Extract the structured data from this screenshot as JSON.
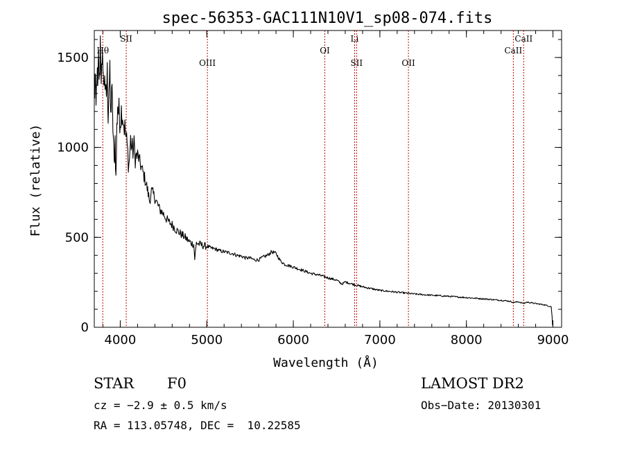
{
  "chart_data": {
    "type": "line",
    "title": "spec-56353-GAC111N10V1_sp08-074.fits",
    "xlabel": "Wavelength (Å)",
    "ylabel": "Flux (relative)",
    "xlim": [
      3700,
      9100
    ],
    "ylim": [
      0,
      1650
    ],
    "x_ticks": [
      4000,
      5000,
      6000,
      7000,
      8000,
      9000
    ],
    "y_ticks": [
      0,
      500,
      1000,
      1500
    ],
    "grid": false,
    "series": [
      {
        "x": [
          3700,
          3710,
          3720,
          3730,
          3740,
          3750,
          3760,
          3770,
          3780,
          3790,
          3800,
          3810,
          3820,
          3830,
          3840,
          3850,
          3860,
          3870,
          3880,
          3890,
          3900,
          3910,
          3920,
          3930,
          3940,
          3950,
          3960,
          3970,
          3980,
          3990,
          4000,
          4020,
          4040,
          4060,
          4080,
          4100,
          4120,
          4140,
          4160,
          4180,
          4200,
          4250,
          4300,
          4340,
          4360,
          4400,
          4450,
          4500,
          4550,
          4600,
          4650,
          4700,
          4750,
          4800,
          4850,
          4861,
          4880,
          4900,
          4950,
          5000,
          5050,
          5100,
          5150,
          5200,
          5250,
          5300,
          5350,
          5400,
          5450,
          5500,
          5550,
          5600,
          5650,
          5700,
          5750,
          5800,
          5850,
          5900,
          6000,
          6100,
          6200,
          6300,
          6400,
          6500,
          6563,
          6600,
          6700,
          6800,
          6900,
          7000,
          7200,
          7400,
          7600,
          7800,
          8000,
          8200,
          8400,
          8500,
          8542,
          8600,
          8662,
          8700,
          8800,
          8900,
          8950,
          8980,
          8990,
          8995
        ],
        "y": [
          1250,
          1380,
          1200,
          1420,
          1300,
          1480,
          1350,
          1600,
          1420,
          1380,
          1520,
          1300,
          1450,
          1250,
          1300,
          1400,
          1200,
          1350,
          1380,
          1150,
          1350,
          1200,
          1050,
          900,
          1050,
          820,
          1100,
          1250,
          1200,
          1180,
          1160,
          1220,
          1140,
          1080,
          1000,
          900,
          1040,
          980,
          1000,
          940,
          960,
          880,
          800,
          700,
          760,
          720,
          660,
          630,
          590,
          570,
          540,
          520,
          500,
          475,
          460,
          380,
          470,
          465,
          455,
          450,
          440,
          435,
          425,
          420,
          415,
          410,
          400,
          395,
          385,
          385,
          375,
          375,
          390,
          400,
          420,
          410,
          370,
          350,
          335,
          318,
          300,
          290,
          275,
          262,
          240,
          252,
          238,
          225,
          215,
          205,
          195,
          185,
          178,
          172,
          165,
          158,
          150,
          145,
          138,
          142,
          132,
          140,
          132,
          125,
          118,
          115,
          60,
          10
        ]
      }
    ],
    "line_labels": [
      {
        "text": "Hθ",
        "x": 3798,
        "row": "top2"
      },
      {
        "text": "SII",
        "x": 4069,
        "row": "top1"
      },
      {
        "text": "OIII",
        "x": 5007,
        "row": "top3"
      },
      {
        "text": "OI",
        "x": 6364,
        "row": "top2"
      },
      {
        "text": "Li",
        "x": 6708,
        "row": "top1"
      },
      {
        "text": "SII",
        "x": 6731,
        "row": "top3"
      },
      {
        "text": "OII",
        "x": 7330,
        "row": "top3"
      },
      {
        "text": "CaII",
        "x": 8542,
        "row": "top2"
      },
      {
        "text": "CaII",
        "x": 8662,
        "row": "top1"
      }
    ]
  },
  "info": {
    "class_label": "STAR",
    "subclass": "F0",
    "survey": "LAMOST DR2",
    "cz": "cz = −2.9 ± 0.5 km/s",
    "obs_date": "Obs−Date: 20130301",
    "coords": "RA = 113.05748, DEC =  10.22585"
  },
  "colors": {
    "spectrum": "#000000",
    "line_marker": "#c00000",
    "axes": "#000000",
    "background": "#ffffff"
  }
}
